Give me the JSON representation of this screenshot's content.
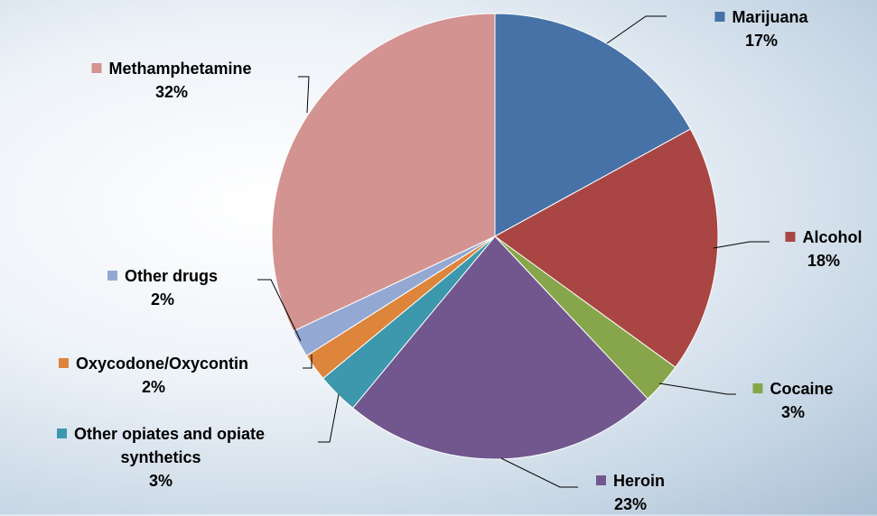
{
  "chart_data": {
    "type": "pie",
    "categories": [
      "Marijuana",
      "Alcohol",
      "Cocaine",
      "Heroin",
      "Other opiates and opiate synthetics",
      "Oxycodone/Oxycontin",
      "Other drugs",
      "Methamphetamine"
    ],
    "values": [
      17,
      18,
      3,
      23,
      3,
      2,
      2,
      32
    ],
    "value_labels": [
      "17%",
      "18%",
      "3%",
      "23%",
      "3%",
      "2%",
      "2%",
      "32%"
    ],
    "colors": [
      "#4672a8",
      "#a94643",
      "#87a64b",
      "#72578f",
      "#3d98ad",
      "#dd853b",
      "#93a9d4",
      "#d39391"
    ]
  }
}
